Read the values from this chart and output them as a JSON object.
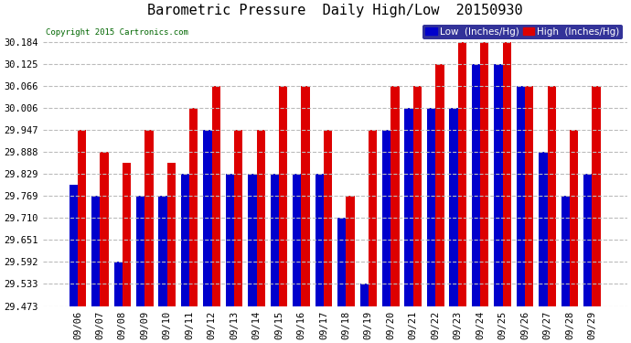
{
  "title": "Barometric Pressure  Daily High/Low  20150930",
  "copyright": "Copyright 2015 Cartronics.com",
  "legend_low": "Low  (Inches/Hg)",
  "legend_high": "High  (Inches/Hg)",
  "dates": [
    "09/06",
    "09/07",
    "09/08",
    "09/09",
    "09/10",
    "09/11",
    "09/12",
    "09/13",
    "09/14",
    "09/15",
    "09/16",
    "09/17",
    "09/18",
    "09/19",
    "09/20",
    "09/21",
    "09/22",
    "09/23",
    "09/24",
    "09/25",
    "09/26",
    "09/27",
    "09/28",
    "09/29"
  ],
  "low": [
    29.8,
    29.769,
    29.592,
    29.769,
    29.769,
    29.829,
    29.947,
    29.829,
    29.829,
    29.829,
    29.829,
    29.829,
    29.71,
    29.533,
    29.947,
    30.006,
    30.006,
    30.006,
    30.125,
    30.125,
    30.066,
    29.888,
    29.769,
    29.829
  ],
  "high": [
    29.947,
    29.888,
    29.858,
    29.947,
    29.858,
    30.006,
    30.066,
    29.947,
    29.947,
    30.066,
    30.066,
    29.947,
    29.769,
    29.947,
    30.066,
    30.066,
    30.125,
    30.184,
    30.184,
    30.184,
    30.066,
    30.066,
    29.947,
    30.066
  ],
  "ylim_min": 29.473,
  "ylim_max": 30.243,
  "yticks": [
    29.473,
    29.533,
    29.592,
    29.651,
    29.71,
    29.769,
    29.829,
    29.888,
    29.947,
    30.006,
    30.066,
    30.125,
    30.184
  ],
  "bar_width": 0.38,
  "low_color": "#0000CC",
  "high_color": "#DD0000",
  "bg_color": "#FFFFFF",
  "grid_color": "#BBBBBB",
  "title_fontsize": 11,
  "tick_fontsize": 7.5,
  "legend_fontsize": 7.5
}
